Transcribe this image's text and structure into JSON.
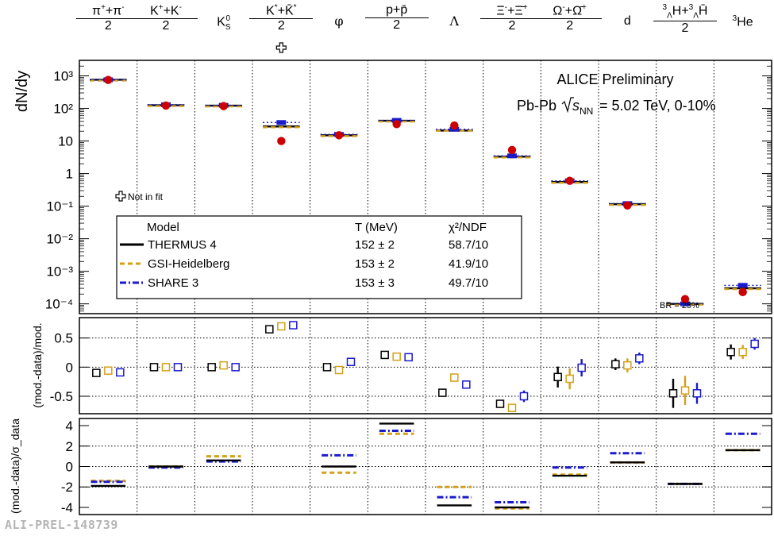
{
  "chart_data": {
    "type": "scatter",
    "particles": [
      {
        "id": "pion",
        "html": "<span class='frac'><span class='num'>π<sup>+</sup>+π<sup>-</sup></span><span class='den'>2</span></span>"
      },
      {
        "id": "kaon",
        "html": "<span class='frac'><span class='num'>K<sup>+</sup>+K<sup>-</sup></span><span class='den'>2</span></span>"
      },
      {
        "id": "k0s",
        "html": "K<sub style='position:relative;'>S</sub><sup style='margin-left:-6px;'>0</sup>"
      },
      {
        "id": "kstar",
        "html": "<span class='frac'><span class='num'>K<sup>*</sup>+K̄<sup>*</sup></span><span class='den'>2</span></span>"
      },
      {
        "id": "phi",
        "html": "<span class='greek'>φ</span>"
      },
      {
        "id": "proton",
        "html": "<span class='frac'><span class='num'>p+p̄</span><span class='den'>2</span></span>"
      },
      {
        "id": "lambda",
        "html": "<span class='greek'>Λ</span>"
      },
      {
        "id": "xi",
        "html": "<span class='frac'><span class='num'>Ξ<sup>-</sup>+Ξ̄<sup>+</sup></span><span class='den'>2</span></span>"
      },
      {
        "id": "omega",
        "html": "<span class='frac'><span class='num'>Ω<sup>-</sup>+Ω̄<sup>+</sup></span><span class='den'>2</span></span>"
      },
      {
        "id": "deuteron",
        "html": "d"
      },
      {
        "id": "hypertriton",
        "html": "<span class='frac'><span class='num'><sup>3</sup><sub>Λ</sub>H+<sup>3</sup><sub>Λ</sub>H̄</span><span class='den'>2</span></span>"
      },
      {
        "id": "he3",
        "html": "<sup>3</sup>He"
      }
    ],
    "top_panel": {
      "ylabel": "dN/dy",
      "scale": "log",
      "ylim": [
        5e-05,
        3000
      ],
      "ticks": [
        {
          "value": 1000,
          "label": "10³"
        },
        {
          "value": 100,
          "label": "10²"
        },
        {
          "value": 10,
          "label": "10"
        },
        {
          "value": 1,
          "label": "1"
        },
        {
          "value": 0.1,
          "label": "10⁻¹"
        },
        {
          "value": 0.01,
          "label": "10⁻²"
        },
        {
          "value": 0.001,
          "label": "10⁻³"
        },
        {
          "value": 0.0001,
          "label": "10⁻⁴"
        }
      ],
      "data": [
        750,
        123,
        118,
        10,
        15,
        33,
        30,
        5.3,
        0.6,
        0.105,
        0.00014,
        0.00023
      ],
      "thermus": [
        760,
        125,
        122,
        28,
        15,
        42,
        21,
        3.3,
        0.55,
        0.115,
        0.0001,
        0.0003
      ],
      "gsi": [
        760,
        125,
        122,
        28,
        15,
        42,
        22,
        3.3,
        0.55,
        0.115,
        0.0001,
        0.0003
      ],
      "share": [
        760,
        130,
        125,
        37,
        16,
        43,
        23,
        3.5,
        0.6,
        0.12,
        0.0001,
        0.00037
      ],
      "not_in_fit_marker_index": 3,
      "annotations": {
        "title": "ALICE Preliminary",
        "system": "Pb-Pb",
        "energy": "= 5.02 TeV, 0-10%",
        "not_in_fit": "Not in fit",
        "br": "BR = 25%"
      },
      "legend": {
        "header": [
          "Model",
          "T (MeV)",
          "χ²/NDF"
        ],
        "rows": [
          {
            "name": "THERMUS 4",
            "T": "152 ± 2",
            "chi2": "58.7/10",
            "color": "#000000",
            "dash": ""
          },
          {
            "name": "GSI-Heidelberg",
            "T": "153 ± 2",
            "chi2": "41.9/10",
            "color": "#d4a017",
            "dash": "6,4"
          },
          {
            "name": "SHARE 3",
            "T": "153 ± 3",
            "chi2": "49.7/10",
            "color": "#1a1acc",
            "dash": "8,3,2,3"
          }
        ]
      }
    },
    "mid_panel": {
      "ylabel": "(mod.-data)/mod.",
      "ylim": [
        -0.8,
        0.85
      ],
      "ticks": [
        0.5,
        0,
        -0.5
      ],
      "tick_labels": [
        "0.5",
        "0",
        "-0.5"
      ],
      "thermus": [
        -0.1,
        0.0,
        0.0,
        0.65,
        0.0,
        0.21,
        -0.44,
        -0.63,
        -0.17,
        0.05,
        -0.45,
        0.26
      ],
      "thermus_err": [
        0,
        0,
        0,
        0,
        0,
        0,
        0.06,
        0.07,
        0.18,
        0.1,
        0.25,
        0.13
      ],
      "gsi": [
        -0.06,
        0.0,
        0.03,
        0.7,
        -0.05,
        0.18,
        -0.18,
        -0.7,
        -0.2,
        0.03,
        -0.4,
        0.26
      ],
      "gsi_err": [
        0,
        0,
        0,
        0,
        0,
        0,
        0.07,
        0.07,
        0.18,
        0.12,
        0.25,
        0.12
      ],
      "share": [
        -0.09,
        0.0,
        0.0,
        0.72,
        0.09,
        0.17,
        -0.3,
        -0.5,
        -0.01,
        0.15,
        -0.45,
        0.4
      ],
      "share_err": [
        0,
        0,
        0,
        0,
        0,
        0,
        0.07,
        0.1,
        0.15,
        0.1,
        0.18,
        0.1
      ]
    },
    "bottom_panel": {
      "ylabel": "(mod.-data)/σ_data",
      "ylim": [
        -4.7,
        4.7
      ],
      "ticks": [
        4,
        2,
        0,
        -2,
        -4
      ],
      "tick_labels": [
        "4",
        "2",
        "0",
        "-2",
        "-4"
      ],
      "thermus": [
        -1.9,
        0.0,
        0.6,
        null,
        0.0,
        4.2,
        -3.8,
        -4.0,
        -0.9,
        0.4,
        -1.7,
        1.6
      ],
      "gsi": [
        -1.4,
        0.0,
        1.0,
        null,
        -0.6,
        3.2,
        -2.0,
        -4.1,
        -0.8,
        0.4,
        -1.7,
        1.6
      ],
      "share": [
        -1.5,
        -0.1,
        0.5,
        null,
        1.1,
        3.5,
        -3.0,
        -3.5,
        -0.1,
        1.3,
        -1.7,
        3.2
      ]
    },
    "colors": {
      "data": "#cc0000",
      "thermus": "#000000",
      "gsi": "#d4a017",
      "share": "#1a1acc",
      "grid": "#000000"
    }
  },
  "footer": {
    "tag": "ALI-PREL-148739"
  }
}
